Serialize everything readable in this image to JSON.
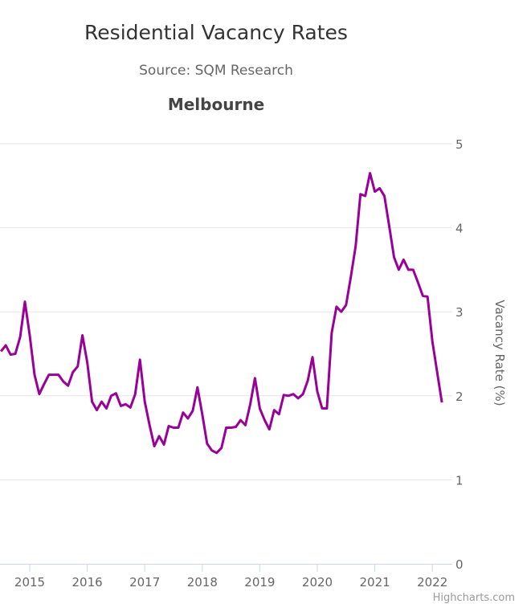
{
  "chart_data": {
    "type": "line",
    "title": "Residential Vacancy Rates",
    "subtitle": "Source: SQM Research",
    "panel_title": "Melbourne",
    "ylabel": "Vacancy Rate (%)",
    "xlabel": "",
    "ylim": [
      0,
      5
    ],
    "yticks": [
      "0",
      "1",
      "2",
      "3",
      "4",
      "5"
    ],
    "xticks": [
      "2015",
      "2016",
      "2017",
      "2018",
      "2019",
      "2020",
      "2021",
      "2022"
    ],
    "grid": true,
    "legend": "none",
    "start_month": "2014-07",
    "series": [
      {
        "name": "Melbourne",
        "color": "#990099",
        "values": [
          2.53,
          2.6,
          2.49,
          2.5,
          2.7,
          3.12,
          2.72,
          2.25,
          2.02,
          2.14,
          2.25,
          2.25,
          2.25,
          2.17,
          2.12,
          2.28,
          2.35,
          2.72,
          2.4,
          1.93,
          1.83,
          1.93,
          1.85,
          2.0,
          2.03,
          1.88,
          1.9,
          1.86,
          2.02,
          2.43,
          1.93,
          1.65,
          1.4,
          1.52,
          1.42,
          1.64,
          1.62,
          1.62,
          1.8,
          1.73,
          1.82,
          2.1,
          1.78,
          1.43,
          1.35,
          1.32,
          1.38,
          1.62,
          1.62,
          1.63,
          1.71,
          1.65,
          1.9,
          2.21,
          1.85,
          1.71,
          1.6,
          1.83,
          1.78,
          2.01,
          2.0,
          2.02,
          1.97,
          2.02,
          2.18,
          2.46,
          2.05,
          1.85,
          1.85,
          2.75,
          3.06,
          3.0,
          3.08,
          3.42,
          3.78,
          4.4,
          4.38,
          4.65,
          4.43,
          4.47,
          4.38,
          4.02,
          3.65,
          3.5,
          3.62,
          3.5,
          3.5,
          3.35,
          3.19,
          3.18,
          2.65,
          2.28,
          1.92
        ]
      }
    ]
  },
  "credit": "Highcharts.com"
}
